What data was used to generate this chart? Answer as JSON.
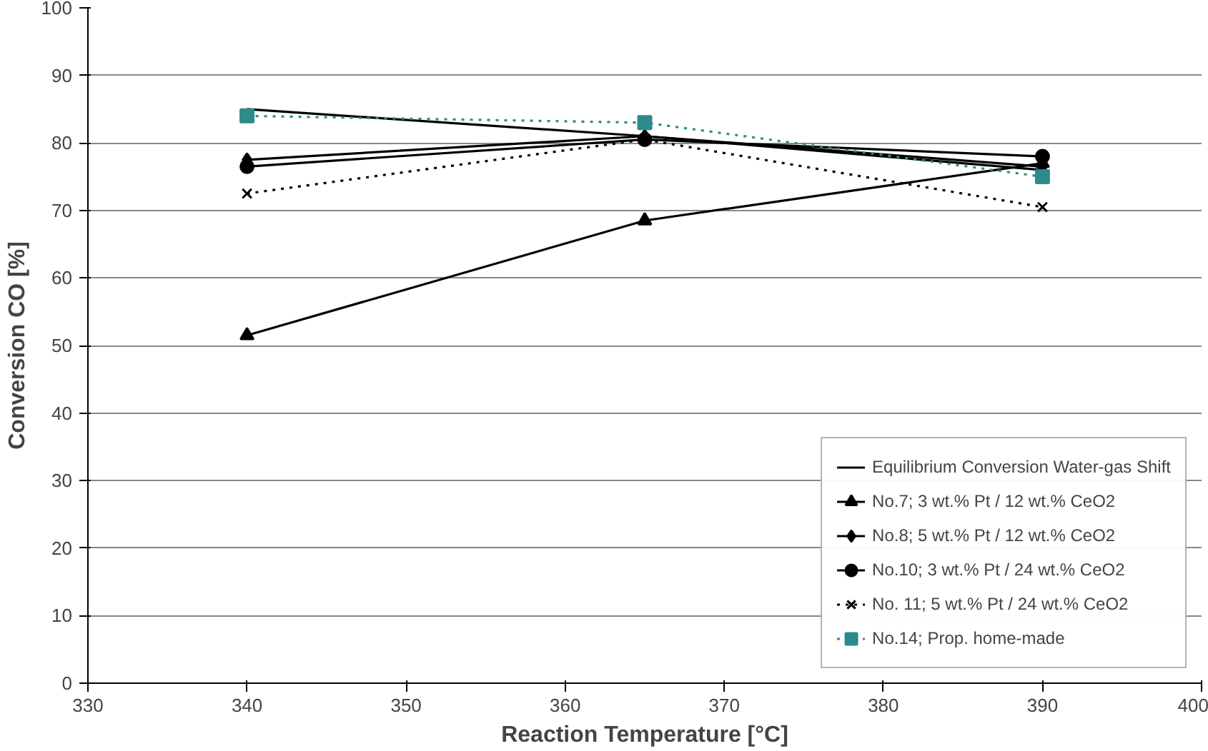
{
  "chart_data": {
    "type": "line",
    "xlabel": "Reaction Temperature [°C]",
    "ylabel": "Conversion CO [%]",
    "x": [
      340,
      365,
      390
    ],
    "xlim": [
      330,
      400
    ],
    "xticks": [
      330,
      340,
      350,
      360,
      370,
      380,
      390,
      400
    ],
    "ylim": [
      0,
      100
    ],
    "yticks": [
      0,
      10,
      20,
      30,
      40,
      50,
      60,
      70,
      80,
      90,
      100
    ],
    "grid": "y",
    "legend": "bottom right",
    "series": [
      {
        "name": "Equilibrium Conversion Water-gas Shift",
        "color": "#000000",
        "values": [
          85,
          81,
          76
        ],
        "marker": "none",
        "line_style": "solid"
      },
      {
        "name": "No.7; 3 wt.% Pt / 12 wt.% CeO2",
        "color": "#000000",
        "values": [
          51.5,
          68.5,
          77
        ],
        "marker": "triangle",
        "line_style": "solid"
      },
      {
        "name": "No.8; 5 wt.% Pt / 12 wt.% CeO2",
        "color": "#000000",
        "values": [
          77.5,
          81,
          76.5
        ],
        "marker": "diamond",
        "line_style": "solid"
      },
      {
        "name": "No.10; 3 wt.% Pt / 24 wt.% CeO2",
        "color": "#000000",
        "values": [
          76.5,
          80.5,
          78
        ],
        "marker": "circle",
        "line_style": "solid"
      },
      {
        "name": "No. 11; 5 wt.% Pt / 24 wt.% CeO2",
        "color": "#000000",
        "values": [
          72.5,
          80.5,
          70.5
        ],
        "marker": "cross",
        "line_style": "dotted"
      },
      {
        "name": "No.14; Prop. home-made",
        "color": "#2e8b8b",
        "values": [
          84,
          83,
          75
        ],
        "marker": "square",
        "line_style": "dotted"
      }
    ]
  }
}
